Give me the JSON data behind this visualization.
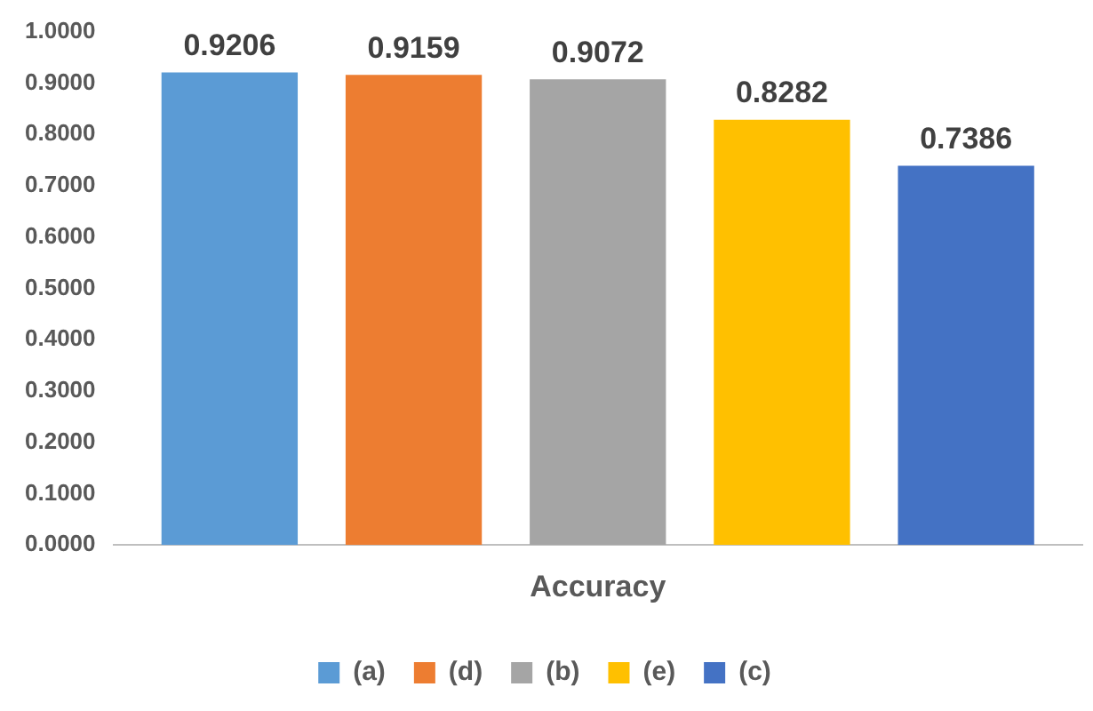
{
  "chart_data": {
    "type": "bar",
    "categories": [
      "Accuracy"
    ],
    "series": [
      {
        "name": "(a)",
        "color": "#5b9bd5",
        "values": [
          0.9206
        ]
      },
      {
        "name": "(d)",
        "color": "#ed7d31",
        "values": [
          0.9159
        ]
      },
      {
        "name": "(b)",
        "color": "#a5a5a5",
        "values": [
          0.9072
        ]
      },
      {
        "name": "(e)",
        "color": "#ffc000",
        "values": [
          0.8282
        ]
      },
      {
        "name": "(c)",
        "color": "#4472c4",
        "values": [
          0.7386
        ]
      }
    ],
    "ylim": [
      0,
      1
    ],
    "yticks": [
      {
        "value": 0,
        "label": "0.0000"
      },
      {
        "value": 0.1,
        "label": "0.1000"
      },
      {
        "value": 0.2,
        "label": "0.2000"
      },
      {
        "value": 0.3,
        "label": "0.3000"
      },
      {
        "value": 0.4,
        "label": "0.4000"
      },
      {
        "value": 0.5,
        "label": "0.5000"
      },
      {
        "value": 0.6,
        "label": "0.6000"
      },
      {
        "value": 0.7,
        "label": "0.7000"
      },
      {
        "value": 0.8,
        "label": "0.8000"
      },
      {
        "value": 0.9,
        "label": "0.9000"
      },
      {
        "value": 1,
        "label": "1.0000"
      }
    ],
    "grid": false,
    "legend": "bottom",
    "data_labels": true
  }
}
